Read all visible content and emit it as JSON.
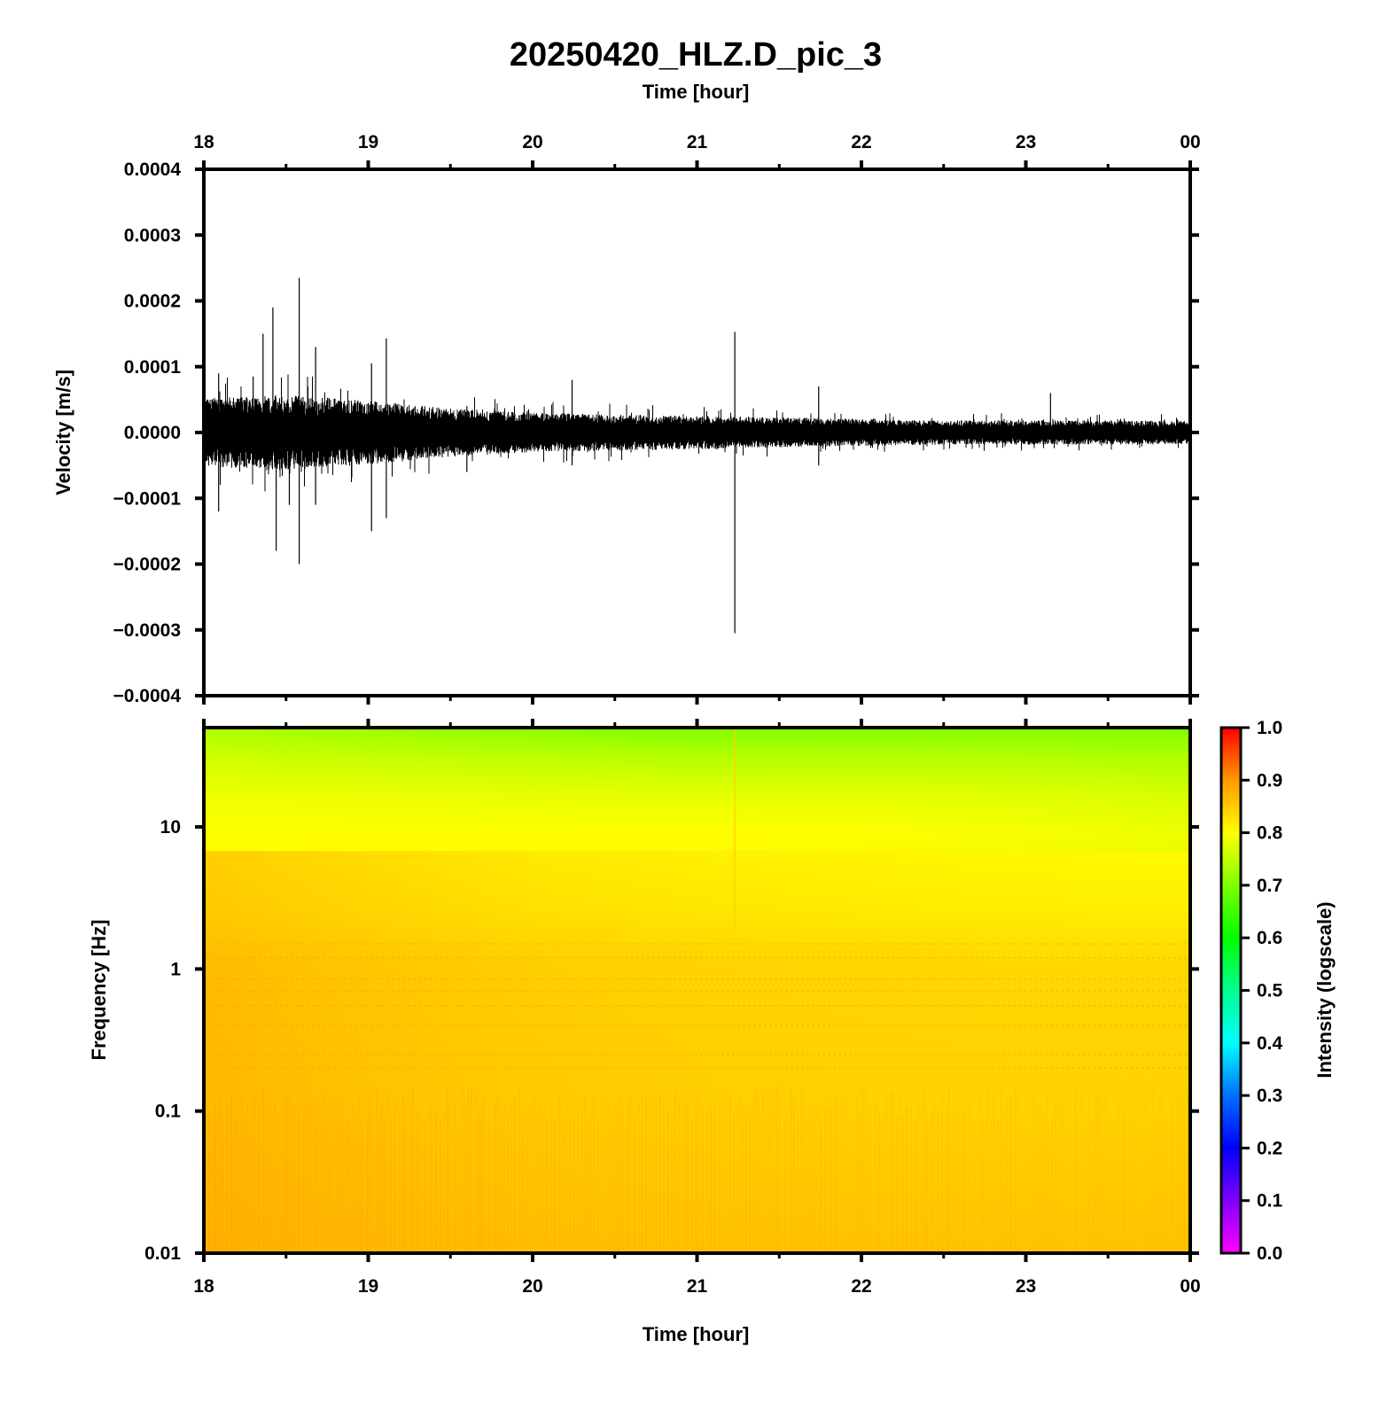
{
  "chart_data": [
    {
      "type": "line",
      "panel": "waveform",
      "title": "20250420_HLZ.D_pic_3",
      "top_xlabel": "Time [hour]",
      "xlabel": "",
      "ylabel": "Velocity [m/s]",
      "xlim": [
        18,
        24
      ],
      "ylim": [
        -0.0004,
        0.0004
      ],
      "x_ticks": [
        "18",
        "19",
        "20",
        "21",
        "22",
        "23",
        "00"
      ],
      "y_ticks": [
        "0.0004",
        "0.0003",
        "0.0002",
        "0.0001",
        "0.0000",
        "−0.0001",
        "−0.0002",
        "−0.0003",
        "−0.0004"
      ],
      "series": [
        {
          "color": "#000000",
          "noise_envelope": {
            "x": [
              18.0,
              18.5,
              19.0,
              19.5,
              20.0,
              20.5,
              21.0,
              21.5,
              22.0,
              22.5,
              23.0,
              23.5,
              24.0
            ],
            "amplitude": [
              4.5e-05,
              5e-05,
              4.2e-05,
              3.2e-05,
              2.6e-05,
              2.4e-05,
              2.2e-05,
              2e-05,
              1.8e-05,
              1.6e-05,
              1.6e-05,
              1.6e-05,
              1.5e-05
            ]
          },
          "spikes": [
            {
              "x": 18.09,
              "y": 9e-05
            },
            {
              "x": 18.09,
              "y": -0.00012
            },
            {
              "x": 18.3,
              "y": 8.5e-05
            },
            {
              "x": 18.36,
              "y": 0.00015
            },
            {
              "x": 18.42,
              "y": 0.00019
            },
            {
              "x": 18.44,
              "y": -0.00018
            },
            {
              "x": 18.52,
              "y": -0.00011
            },
            {
              "x": 18.58,
              "y": 0.000235
            },
            {
              "x": 18.58,
              "y": -0.0002
            },
            {
              "x": 18.68,
              "y": 0.00013
            },
            {
              "x": 18.68,
              "y": -0.00011
            },
            {
              "x": 19.02,
              "y": 0.000105
            },
            {
              "x": 19.02,
              "y": -0.00015
            },
            {
              "x": 19.11,
              "y": 0.000143
            },
            {
              "x": 19.11,
              "y": -0.00013
            },
            {
              "x": 19.6,
              "y": 4e-05
            },
            {
              "x": 19.6,
              "y": -6e-05
            },
            {
              "x": 20.24,
              "y": 8e-05
            },
            {
              "x": 20.24,
              "y": -5e-05
            },
            {
              "x": 21.23,
              "y": 0.000153
            },
            {
              "x": 21.23,
              "y": -0.000305
            },
            {
              "x": 21.74,
              "y": 7e-05
            },
            {
              "x": 21.74,
              "y": -5e-05
            },
            {
              "x": 23.15,
              "y": 6e-05
            }
          ]
        }
      ]
    },
    {
      "type": "heatmap",
      "panel": "spectrogram",
      "xlabel": "Time [hour]",
      "ylabel": "Frequency [Hz]",
      "xlim": [
        18,
        24
      ],
      "y_scale": "log",
      "ylim": [
        0.01,
        50
      ],
      "x_ticks": [
        "18",
        "19",
        "20",
        "21",
        "22",
        "23",
        "00"
      ],
      "y_ticks": [
        "10",
        "1",
        "0.1",
        "0.01"
      ],
      "colorbar": {
        "label": "Intensity (logscale)",
        "range": [
          0,
          1
        ],
        "ticks": [
          "1.0",
          "0.9",
          "0.8",
          "0.7",
          "0.6",
          "0.5",
          "0.4",
          "0.3",
          "0.2",
          "0.1",
          "0.0"
        ],
        "colors": [
          "#ff00ff",
          "#8000ff",
          "#0000ff",
          "#0080ff",
          "#00ffff",
          "#00ff80",
          "#00ff00",
          "#80ff00",
          "#ffff00",
          "#ffc000",
          "#ff8000",
          "#ff0000"
        ]
      },
      "intensity_profile": {
        "frequency_hz": [
          0.01,
          0.03,
          0.1,
          0.3,
          1,
          2,
          5,
          10,
          20,
          50
        ],
        "intensity_early": [
          0.87,
          0.86,
          0.85,
          0.86,
          0.85,
          0.84,
          0.83,
          0.81,
          0.77,
          0.7
        ],
        "intensity_late": [
          0.83,
          0.82,
          0.82,
          0.83,
          0.82,
          0.8,
          0.77,
          0.74,
          0.7,
          0.66
        ]
      }
    }
  ]
}
